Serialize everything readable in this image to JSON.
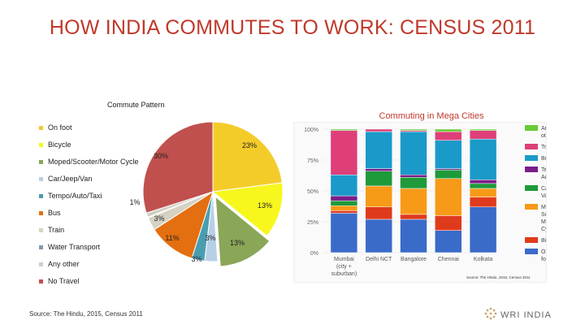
{
  "title": "HOW INDIA COMMUTES TO WORK: CENSUS 2011",
  "source_left": "Source: The Hindu, 2015, Census 2011",
  "source_right": "Source: The Hindu, 2015, Census 2011",
  "logo_text": "WRI INDIA",
  "chart_data": [
    {
      "type": "pie",
      "title": "Commute Pattern",
      "legend_position": "left",
      "labels": [
        "On foot",
        "Bicycle",
        "Moped/Scooter/Motor Cycle",
        "Car/Jeep/Van",
        "Tempo/Auto/Taxi",
        "Bus",
        "Train",
        "Water Transport",
        "Any other",
        "No Travel"
      ],
      "values": [
        23,
        13,
        13,
        3,
        3,
        11,
        3,
        0.2,
        1,
        30
      ],
      "data_labels": [
        "23%",
        "13%",
        "13%",
        "3%",
        "3%",
        "11%",
        "3%",
        "",
        "1%",
        "30%"
      ],
      "colors": [
        "#f4cc2a",
        "#f7f71e",
        "#8aa657",
        "#b8d0e6",
        "#4a9db0",
        "#e46f10",
        "#d6d2c3",
        "#8899aa",
        "#cfcfc4",
        "#c0504d"
      ]
    },
    {
      "type": "bar",
      "stacked": true,
      "title": "Commuting in Mega Cities",
      "legend_position": "right",
      "categories": [
        "Mumbai (city + suburban)",
        "Delhi NCT",
        "Bangalore",
        "Chennai",
        "Kolkata"
      ],
      "tick_labels": [
        "Mumbai\n(city +\nsuburban)",
        "Delhi NCT",
        "Bangalore",
        "Chennai",
        "Kolkata"
      ],
      "yticks": [
        "0%",
        "25%",
        "50%",
        "75%",
        "100%"
      ],
      "ylim": [
        0,
        100
      ],
      "series": [
        {
          "name": "On foot",
          "color": "#3a6bc9",
          "values": [
            32,
            27,
            27,
            18,
            37
          ]
        },
        {
          "name": "Bicycle",
          "color": "#e03a1c",
          "values": [
            2,
            10,
            4,
            12,
            8
          ]
        },
        {
          "name": "Moped/ Scooter/ Motor Cycle",
          "color": "#f79a18",
          "values": [
            4,
            17,
            21,
            30,
            7
          ]
        },
        {
          "name": "Car/Jeep/ Van",
          "color": "#1e9a3a",
          "values": [
            4,
            12,
            9,
            7,
            4
          ]
        },
        {
          "name": "Tempo/ Autorick...",
          "color": "#7a1d8a",
          "values": [
            4,
            2,
            2,
            1,
            3
          ]
        },
        {
          "name": "Bus",
          "color": "#1a9ac9",
          "values": [
            17,
            30,
            35,
            23,
            33
          ]
        },
        {
          "name": "Train",
          "color": "#de3f79",
          "values": [
            36,
            2,
            1,
            7,
            7
          ]
        },
        {
          "name": "Any other",
          "color": "#66cc33",
          "values": [
            1,
            0,
            1,
            2,
            1
          ]
        }
      ],
      "legend": [
        "Any other",
        "Train",
        "Bus",
        "Tempo/ Autorick...",
        "Car/Jeep/ Van",
        "Moped/ Scooter/ Motor Cycle",
        "Bicycle",
        "On foot"
      ]
    }
  ]
}
